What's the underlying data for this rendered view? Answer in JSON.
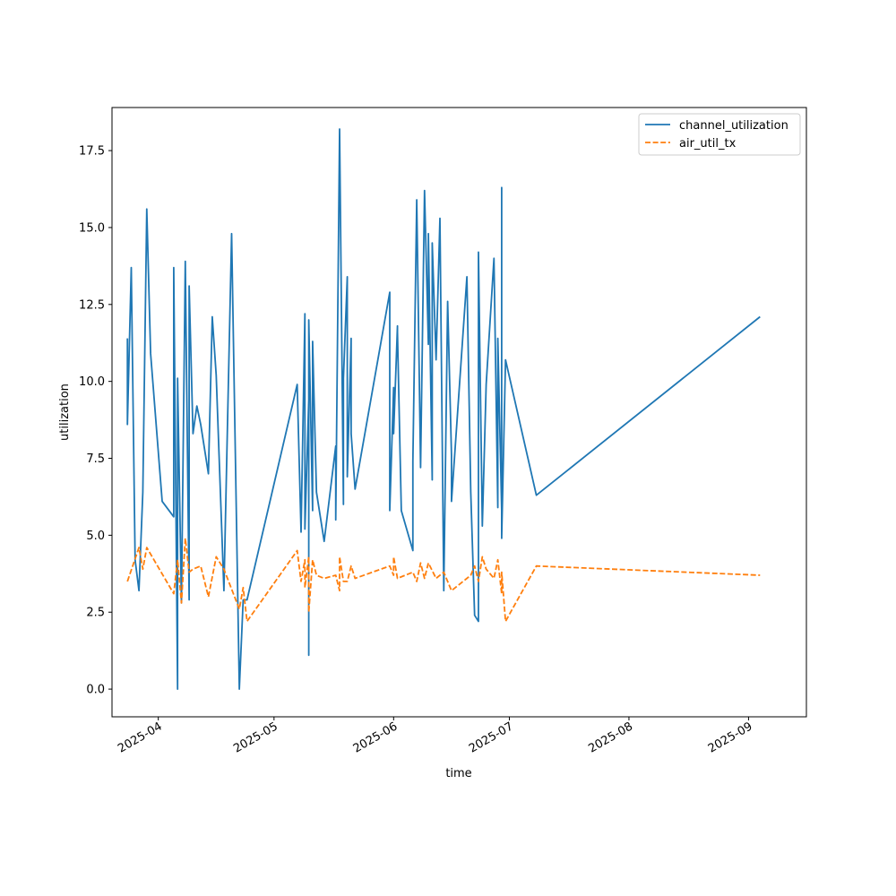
{
  "chart_data": {
    "type": "line",
    "xlabel": "time",
    "ylabel": "utilization",
    "x_axis_type": "date",
    "xlim": [
      "2025-03-20",
      "2025-09-16"
    ],
    "ylim": [
      -0.9,
      18.9
    ],
    "x_ticks": [
      "2025-04-01",
      "2025-05-01",
      "2025-06-01",
      "2025-07-01",
      "2025-08-01",
      "2025-09-01"
    ],
    "x_tick_labels": [
      "2025-04",
      "2025-05",
      "2025-06",
      "2025-07",
      "2025-08",
      "2025-09"
    ],
    "y_ticks": [
      0.0,
      2.5,
      5.0,
      7.5,
      10.0,
      12.5,
      15.0,
      17.5
    ],
    "y_tick_labels": [
      "0.0",
      "2.5",
      "5.0",
      "7.5",
      "10.0",
      "12.5",
      "15.0",
      "17.5"
    ],
    "grid": false,
    "legend_position": "top-right",
    "series": [
      {
        "name": "channel_utilization",
        "color": "#1f77b4",
        "style": "solid",
        "x": [
          "2025-03-24",
          "2025-03-24",
          "2025-03-25",
          "2025-03-26",
          "2025-03-27",
          "2025-03-28",
          "2025-03-29",
          "2025-03-30",
          "2025-04-02",
          "2025-04-05",
          "2025-04-05",
          "2025-04-06",
          "2025-04-06",
          "2025-04-07",
          "2025-04-08",
          "2025-04-09",
          "2025-04-09",
          "2025-04-10",
          "2025-04-11",
          "2025-04-12",
          "2025-04-14",
          "2025-04-15",
          "2025-04-16",
          "2025-04-18",
          "2025-04-20",
          "2025-04-22",
          "2025-04-23",
          "2025-04-24",
          "2025-05-07",
          "2025-05-08",
          "2025-05-09",
          "2025-05-09",
          "2025-05-10",
          "2025-05-10",
          "2025-05-10",
          "2025-05-11",
          "2025-05-11",
          "2025-05-12",
          "2025-05-14",
          "2025-05-17",
          "2025-05-17",
          "2025-05-18",
          "2025-05-19",
          "2025-05-19",
          "2025-05-20",
          "2025-05-20",
          "2025-05-21",
          "2025-05-21",
          "2025-05-22",
          "2025-05-31",
          "2025-05-31",
          "2025-06-01",
          "2025-06-01",
          "2025-06-02",
          "2025-06-02",
          "2025-06-03",
          "2025-06-06",
          "2025-06-06",
          "2025-06-07",
          "2025-06-08",
          "2025-06-09",
          "2025-06-10",
          "2025-06-10",
          "2025-06-11",
          "2025-06-11",
          "2025-06-12",
          "2025-06-13",
          "2025-06-14",
          "2025-06-15",
          "2025-06-16",
          "2025-06-16",
          "2025-06-20",
          "2025-06-21",
          "2025-06-22",
          "2025-06-23",
          "2025-06-23",
          "2025-06-24",
          "2025-06-25",
          "2025-06-27",
          "2025-06-28",
          "2025-06-28",
          "2025-06-29",
          "2025-06-29",
          "2025-06-29",
          "2025-06-30",
          "2025-07-08",
          "2025-09-04"
        ],
        "y": [
          11.4,
          8.6,
          13.7,
          4.2,
          3.2,
          6.4,
          15.6,
          10.9,
          6.1,
          5.6,
          13.7,
          0.0,
          10.1,
          2.8,
          13.9,
          2.9,
          13.1,
          8.3,
          9.2,
          8.6,
          7.0,
          12.1,
          10.2,
          3.2,
          14.8,
          0.0,
          2.9,
          2.9,
          9.9,
          5.1,
          12.2,
          5.2,
          9.4,
          1.1,
          12.0,
          5.8,
          11.3,
          6.4,
          4.8,
          7.9,
          5.5,
          18.2,
          6.0,
          10.1,
          13.4,
          6.9,
          11.4,
          8.3,
          6.5,
          12.9,
          5.8,
          9.8,
          8.3,
          11.8,
          11.6,
          5.8,
          4.5,
          7.4,
          15.9,
          7.2,
          16.2,
          11.2,
          14.8,
          6.8,
          14.5,
          10.7,
          15.3,
          3.2,
          12.6,
          7.6,
          6.1,
          13.4,
          6.4,
          2.4,
          2.2,
          14.2,
          5.3,
          9.9,
          14.0,
          5.9,
          11.4,
          5.8,
          16.3,
          4.9,
          10.7,
          6.3,
          12.1
        ]
      },
      {
        "name": "air_util_tx",
        "color": "#ff7f0e",
        "style": "dashed",
        "x": [
          "2025-03-24",
          "2025-03-27",
          "2025-03-28",
          "2025-03-29",
          "2025-04-05",
          "2025-04-06",
          "2025-04-07",
          "2025-04-08",
          "2025-04-09",
          "2025-04-10",
          "2025-04-12",
          "2025-04-14",
          "2025-04-16",
          "2025-04-18",
          "2025-04-22",
          "2025-04-23",
          "2025-04-24",
          "2025-05-07",
          "2025-05-08",
          "2025-05-09",
          "2025-05-09",
          "2025-05-10",
          "2025-05-10",
          "2025-05-11",
          "2025-05-12",
          "2025-05-14",
          "2025-05-17",
          "2025-05-18",
          "2025-05-18",
          "2025-05-19",
          "2025-05-20",
          "2025-05-21",
          "2025-05-22",
          "2025-05-31",
          "2025-06-01",
          "2025-06-01",
          "2025-06-02",
          "2025-06-06",
          "2025-06-07",
          "2025-06-08",
          "2025-06-09",
          "2025-06-10",
          "2025-06-12",
          "2025-06-14",
          "2025-06-16",
          "2025-06-20",
          "2025-06-21",
          "2025-06-22",
          "2025-06-23",
          "2025-06-24",
          "2025-06-25",
          "2025-06-27",
          "2025-06-28",
          "2025-06-29",
          "2025-06-29",
          "2025-06-30",
          "2025-07-08",
          "2025-09-04"
        ],
        "y": [
          3.5,
          4.6,
          3.9,
          4.6,
          3.1,
          4.2,
          2.8,
          4.9,
          3.8,
          3.9,
          4.0,
          3.0,
          4.3,
          3.9,
          2.6,
          3.3,
          2.2,
          4.5,
          3.5,
          4.2,
          3.3,
          4.3,
          2.5,
          4.2,
          3.7,
          3.6,
          3.7,
          3.2,
          4.3,
          3.5,
          3.5,
          4.0,
          3.6,
          4.0,
          3.7,
          4.3,
          3.6,
          3.8,
          3.5,
          4.1,
          3.6,
          4.1,
          3.6,
          3.8,
          3.2,
          3.6,
          3.7,
          4.0,
          3.5,
          4.3,
          3.9,
          3.6,
          4.2,
          3.1,
          3.8,
          2.2,
          4.0,
          3.7
        ]
      }
    ]
  }
}
